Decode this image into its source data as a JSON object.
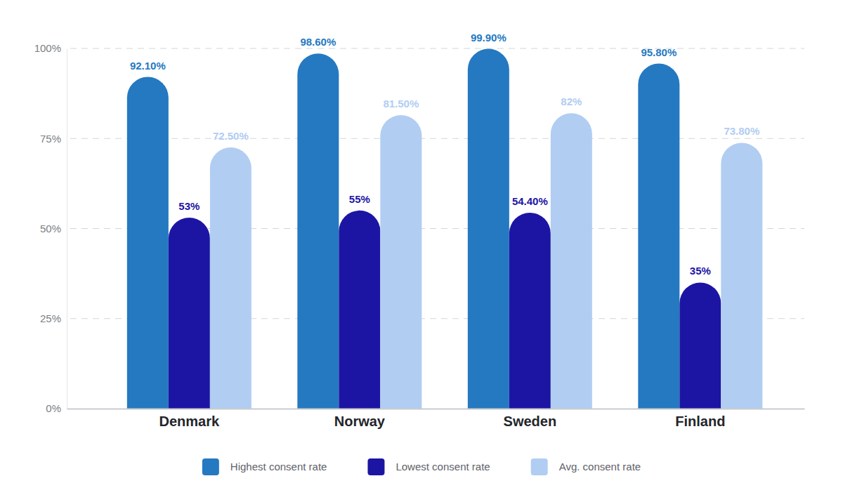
{
  "chart_data": {
    "type": "bar",
    "categories": [
      "Denmark",
      "Norway",
      "Sweden",
      "Finland"
    ],
    "series": [
      {
        "name": "Highest consent rate",
        "color": "#2479c1",
        "values": [
          92.1,
          98.6,
          99.9,
          95.8
        ],
        "value_labels": [
          "92.10%",
          "98.60%",
          "99.90%",
          "95.80%"
        ]
      },
      {
        "name": "Lowest consent rate",
        "color": "#1c15a3",
        "values": [
          53,
          55,
          54.4,
          35
        ],
        "value_labels": [
          "53%",
          "55%",
          "54.40%",
          "35%"
        ]
      },
      {
        "name": "Avg. consent rate",
        "color": "#b1cdf2",
        "values": [
          72.5,
          81.5,
          82,
          73.8
        ],
        "value_labels": [
          "72.50%",
          "81.50%",
          "82%",
          "73.80%"
        ]
      }
    ],
    "ylim": [
      0,
      100
    ],
    "yticks": [
      {
        "value": 0,
        "label": "0%"
      },
      {
        "value": 25,
        "label": "25%"
      },
      {
        "value": 50,
        "label": "50%"
      },
      {
        "value": 75,
        "label": "75%"
      },
      {
        "value": 100,
        "label": "100%"
      }
    ],
    "grid": true,
    "legend": "bottom",
    "data_labels": true
  }
}
